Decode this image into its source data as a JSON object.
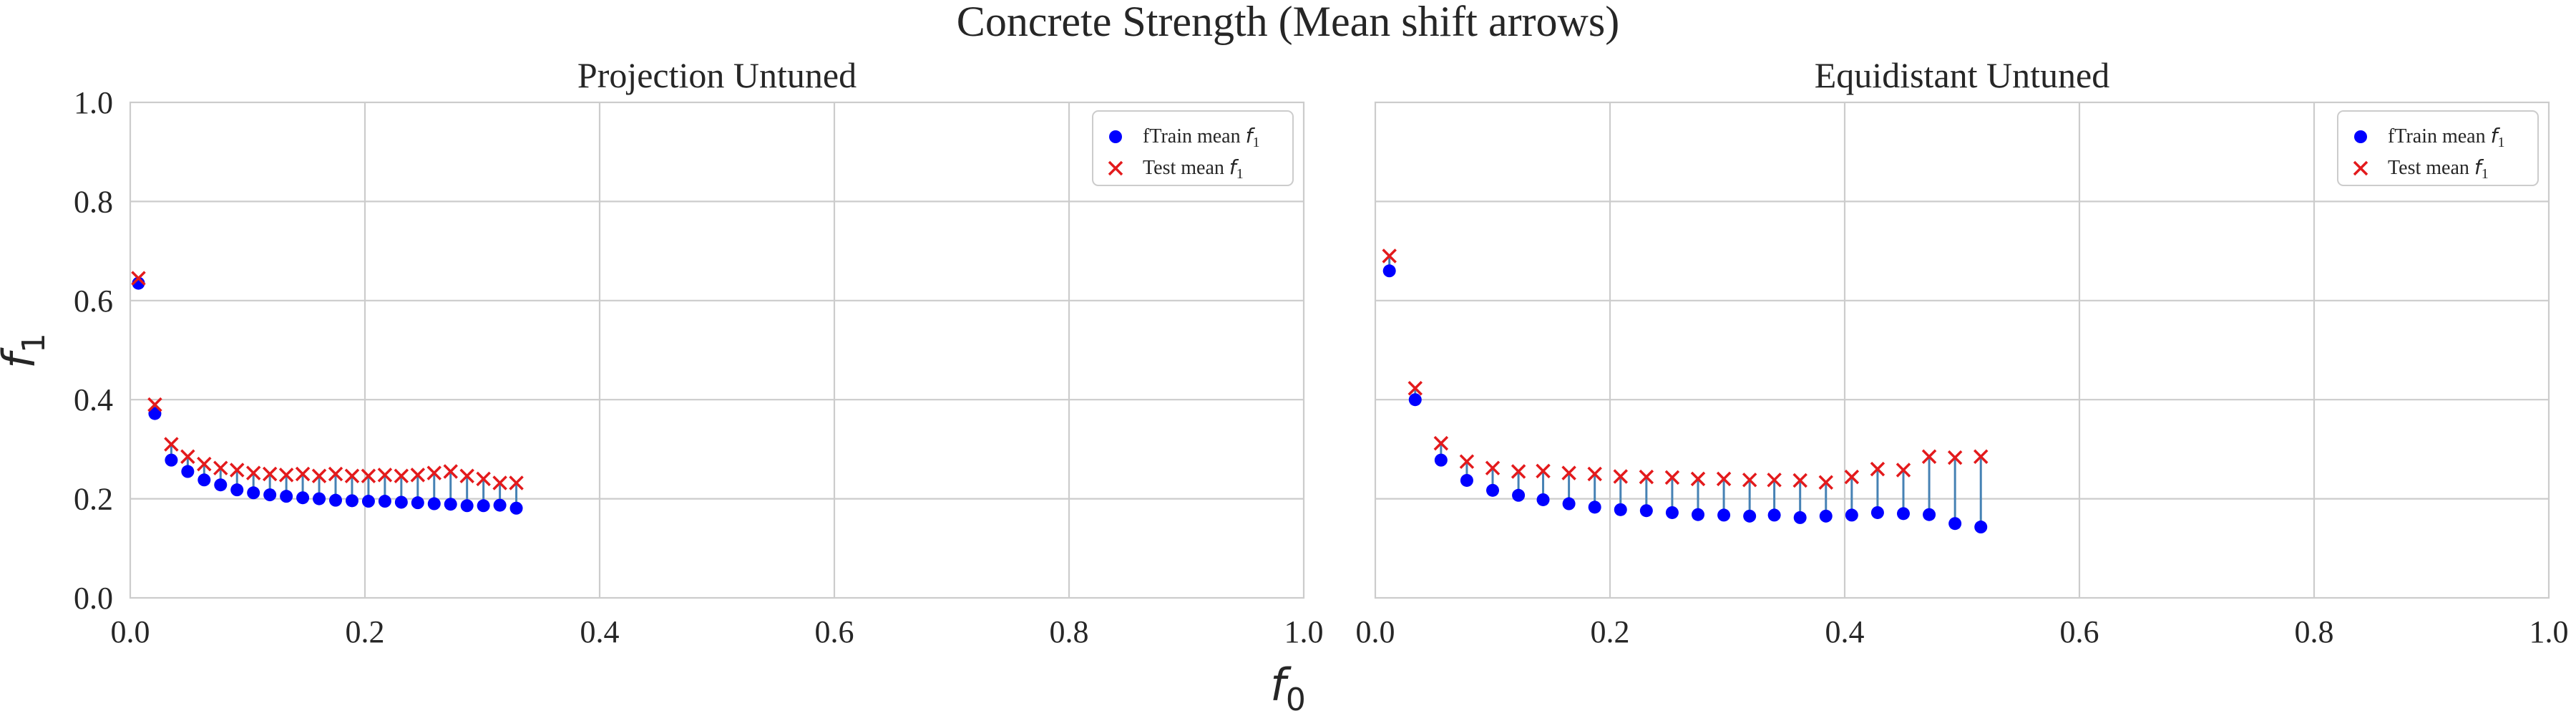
{
  "figure": {
    "title": "Concrete Strength (Mean shift arrows)",
    "xlabel_base": "f",
    "xlabel_sub": "0",
    "ylabel_base": "f",
    "ylabel_sub": "1"
  },
  "colors": {
    "train_marker": "#0000ff",
    "test_marker": "#e31a1c",
    "shift_line": "#4682b4",
    "grid": "#cccccc"
  },
  "chart_data": [
    {
      "type": "scatter",
      "title": "Projection Untuned",
      "xlim": [
        0,
        1
      ],
      "ylim": [
        0,
        1
      ],
      "xticks": [
        "0.0",
        "0.2",
        "0.4",
        "0.6",
        "0.8",
        "1.0"
      ],
      "yticks": [
        "0.0",
        "0.2",
        "0.4",
        "0.6",
        "0.8",
        "1.0"
      ],
      "grid": true,
      "legend_position": "top-right",
      "legend": [
        {
          "prefix": "fTrain mean ",
          "base": "f",
          "sub": "1"
        },
        {
          "prefix": "Test mean ",
          "base": "f",
          "sub": "1"
        }
      ],
      "x": [
        0.007,
        0.021,
        0.035,
        0.049,
        0.063,
        0.077,
        0.091,
        0.105,
        0.119,
        0.133,
        0.147,
        0.161,
        0.175,
        0.189,
        0.203,
        0.217,
        0.231,
        0.245,
        0.259,
        0.273,
        0.287,
        0.301,
        0.315,
        0.329
      ],
      "train": [
        0.635,
        0.372,
        0.278,
        0.255,
        0.238,
        0.228,
        0.218,
        0.212,
        0.208,
        0.205,
        0.202,
        0.2,
        0.197,
        0.196,
        0.195,
        0.195,
        0.193,
        0.192,
        0.19,
        0.189,
        0.186,
        0.186,
        0.187,
        0.181
      ],
      "test": [
        0.645,
        0.39,
        0.31,
        0.285,
        0.27,
        0.262,
        0.258,
        0.252,
        0.25,
        0.248,
        0.25,
        0.246,
        0.25,
        0.246,
        0.246,
        0.248,
        0.246,
        0.248,
        0.252,
        0.255,
        0.246,
        0.24,
        0.232,
        0.232
      ]
    },
    {
      "type": "scatter",
      "title": "Equidistant Untuned",
      "xlim": [
        0,
        1
      ],
      "ylim": [
        0,
        1
      ],
      "xticks": [
        "0.0",
        "0.2",
        "0.4",
        "0.6",
        "0.8",
        "1.0"
      ],
      "yticks": [],
      "grid": true,
      "legend_position": "top-right",
      "legend": [
        {
          "prefix": "fTrain mean ",
          "base": "f",
          "sub": "1"
        },
        {
          "prefix": "Test mean ",
          "base": "f",
          "sub": "1"
        }
      ],
      "x": [
        0.012,
        0.034,
        0.056,
        0.078,
        0.1,
        0.122,
        0.143,
        0.165,
        0.187,
        0.209,
        0.231,
        0.253,
        0.275,
        0.297,
        0.319,
        0.34,
        0.362,
        0.384,
        0.406,
        0.428,
        0.45,
        0.472,
        0.494,
        0.516
      ],
      "train": [
        0.66,
        0.4,
        0.278,
        0.237,
        0.217,
        0.207,
        0.198,
        0.19,
        0.183,
        0.178,
        0.176,
        0.172,
        0.168,
        0.167,
        0.165,
        0.167,
        0.162,
        0.165,
        0.167,
        0.172,
        0.17,
        0.168,
        0.15,
        0.143
      ],
      "test": [
        0.69,
        0.423,
        0.312,
        0.275,
        0.262,
        0.255,
        0.256,
        0.252,
        0.25,
        0.245,
        0.244,
        0.243,
        0.24,
        0.24,
        0.238,
        0.238,
        0.237,
        0.233,
        0.244,
        0.26,
        0.258,
        0.285,
        0.283,
        0.285
      ]
    }
  ]
}
